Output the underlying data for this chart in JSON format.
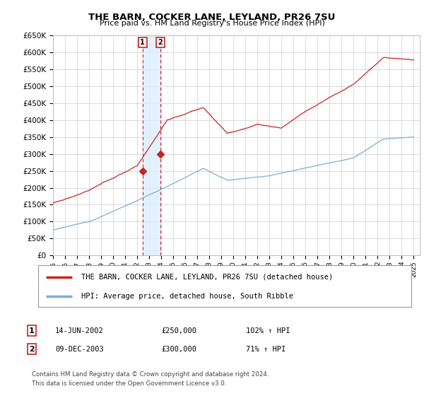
{
  "title": "THE BARN, COCKER LANE, LEYLAND, PR26 7SU",
  "subtitle": "Price paid vs. HM Land Registry's House Price Index (HPI)",
  "ylim": [
    0,
    650000
  ],
  "yticks": [
    0,
    50000,
    100000,
    150000,
    200000,
    250000,
    300000,
    350000,
    400000,
    450000,
    500000,
    550000,
    600000,
    650000
  ],
  "xlim_left": 1995,
  "xlim_right": 2025.5,
  "hpi_color": "#7aafd4",
  "price_color": "#cc2222",
  "transaction1_date": 2002.45,
  "transaction1_price": 250000,
  "transaction2_date": 2003.92,
  "transaction2_price": 300000,
  "legend1": "THE BARN, COCKER LANE, LEYLAND, PR26 7SU (detached house)",
  "legend2": "HPI: Average price, detached house, South Ribble",
  "table_row1": [
    "1",
    "14-JUN-2002",
    "£250,000",
    "102% ↑ HPI"
  ],
  "table_row2": [
    "2",
    "09-DEC-2003",
    "£300,000",
    "71% ↑ HPI"
  ],
  "footnote1": "Contains HM Land Registry data © Crown copyright and database right 2024.",
  "footnote2": "This data is licensed under the Open Government Licence v3.0.",
  "background_color": "#ffffff",
  "grid_color": "#cccccc",
  "shade_color": "#ddeeff"
}
